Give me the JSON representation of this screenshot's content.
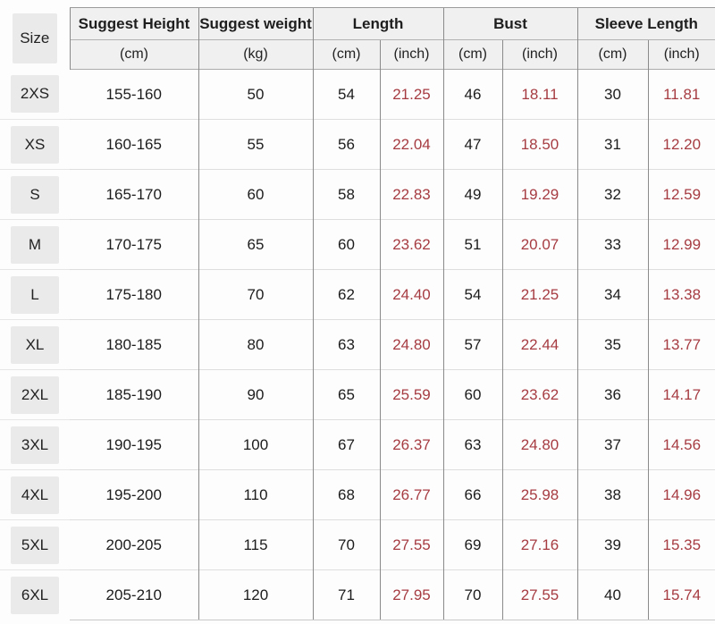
{
  "colors": {
    "inch_value_red": "#a63c42",
    "inch_header_red": "#b3474f",
    "header_text": "#1e1e1e",
    "body_text": "#1c1c1c",
    "size_chip_bg": "#eaeaea",
    "header_bg": "#f0f0f0",
    "grid_line_gray": "#8a8a8a"
  },
  "header": {
    "size_label": "Size",
    "groups": [
      {
        "label": "Suggest Height",
        "units": [
          "(cm)"
        ]
      },
      {
        "label": "Suggest weight",
        "units": [
          "(kg)"
        ]
      },
      {
        "label": "Length",
        "units": [
          "(cm)",
          "(inch)"
        ]
      },
      {
        "label": "Bust",
        "units": [
          "(cm)",
          "(inch)"
        ]
      },
      {
        "label": "Sleeve Length",
        "units": [
          "(cm)",
          "(inch)"
        ]
      }
    ]
  },
  "chart_data": {
    "type": "table",
    "columns": [
      "Size",
      "Suggest Height (cm)",
      "Suggest weight (kg)",
      "Length (cm)",
      "Length (inch)",
      "Bust (cm)",
      "Bust (inch)",
      "Sleeve Length (cm)",
      "Sleeve Length (inch)"
    ],
    "rows": [
      {
        "size": "2XS",
        "height": "155-160",
        "weight": "50",
        "length_cm": "54",
        "length_in": "21.25",
        "bust_cm": "46",
        "bust_in": "18.11",
        "sleeve_cm": "30",
        "sleeve_in": "11.81"
      },
      {
        "size": "XS",
        "height": "160-165",
        "weight": "55",
        "length_cm": "56",
        "length_in": "22.04",
        "bust_cm": "47",
        "bust_in": "18.50",
        "sleeve_cm": "31",
        "sleeve_in": "12.20"
      },
      {
        "size": "S",
        "height": "165-170",
        "weight": "60",
        "length_cm": "58",
        "length_in": "22.83",
        "bust_cm": "49",
        "bust_in": "19.29",
        "sleeve_cm": "32",
        "sleeve_in": "12.59"
      },
      {
        "size": "M",
        "height": "170-175",
        "weight": "65",
        "length_cm": "60",
        "length_in": "23.62",
        "bust_cm": "51",
        "bust_in": "20.07",
        "sleeve_cm": "33",
        "sleeve_in": "12.99"
      },
      {
        "size": "L",
        "height": "175-180",
        "weight": "70",
        "length_cm": "62",
        "length_in": "24.40",
        "bust_cm": "54",
        "bust_in": "21.25",
        "sleeve_cm": "34",
        "sleeve_in": "13.38"
      },
      {
        "size": "XL",
        "height": "180-185",
        "weight": "80",
        "length_cm": "63",
        "length_in": "24.80",
        "bust_cm": "57",
        "bust_in": "22.44",
        "sleeve_cm": "35",
        "sleeve_in": "13.77"
      },
      {
        "size": "2XL",
        "height": "185-190",
        "weight": "90",
        "length_cm": "65",
        "length_in": "25.59",
        "bust_cm": "60",
        "bust_in": "23.62",
        "sleeve_cm": "36",
        "sleeve_in": "14.17"
      },
      {
        "size": "3XL",
        "height": "190-195",
        "weight": "100",
        "length_cm": "67",
        "length_in": "26.37",
        "bust_cm": "63",
        "bust_in": "24.80",
        "sleeve_cm": "37",
        "sleeve_in": "14.56"
      },
      {
        "size": "4XL",
        "height": "195-200",
        "weight": "110",
        "length_cm": "68",
        "length_in": "26.77",
        "bust_cm": "66",
        "bust_in": "25.98",
        "sleeve_cm": "38",
        "sleeve_in": "14.96"
      },
      {
        "size": "5XL",
        "height": "200-205",
        "weight": "115",
        "length_cm": "70",
        "length_in": "27.55",
        "bust_cm": "69",
        "bust_in": "27.16",
        "sleeve_cm": "39",
        "sleeve_in": "15.35"
      },
      {
        "size": "6XL",
        "height": "205-210",
        "weight": "120",
        "length_cm": "71",
        "length_in": "27.95",
        "bust_cm": "70",
        "bust_in": "27.55",
        "sleeve_cm": "40",
        "sleeve_in": "15.74"
      }
    ]
  }
}
